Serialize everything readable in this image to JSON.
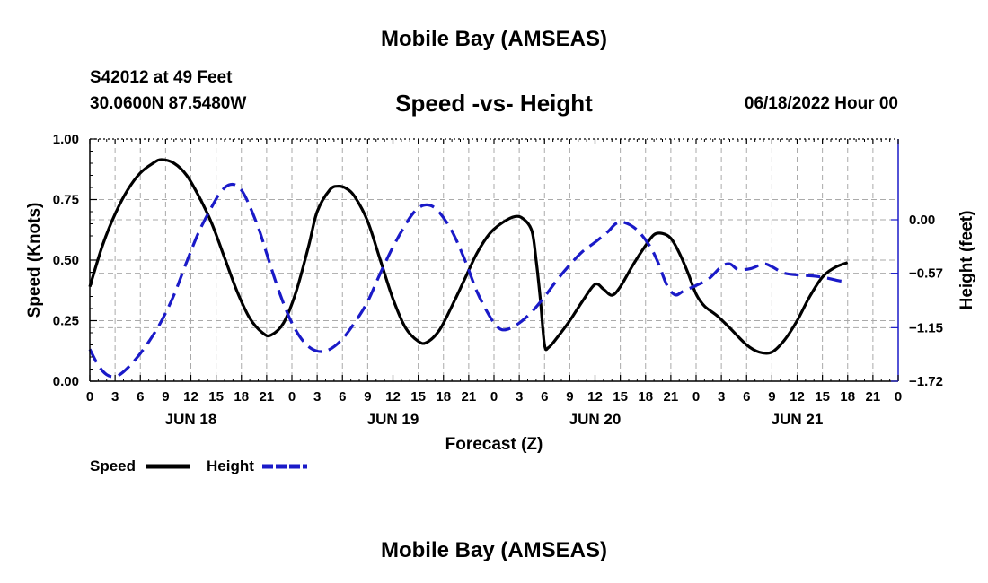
{
  "header": {
    "title": "Mobile Bay (AMSEAS)",
    "station": "S42012 at 49 Feet",
    "coords": "30.0600N  87.5480W",
    "subtitle": "Speed -vs- Height",
    "datetime": "06/18/2022 Hour 00"
  },
  "footer": {
    "title": "Mobile Bay (AMSEAS)"
  },
  "colors": {
    "speed": "#000000",
    "height": "#1a1ac8",
    "grid": "#aaaaaa"
  },
  "chart_data": {
    "type": "line",
    "title": "Speed -vs- Height",
    "xlabel": "Forecast (Z)",
    "ylabel": "Speed (Knots)",
    "ylabel_right": "Height (feet)",
    "x_unit": "hours since 06/18/2022 00Z",
    "xlim": [
      0,
      96
    ],
    "x_ticks": [
      0,
      3,
      6,
      9,
      12,
      15,
      18,
      21,
      24,
      27,
      30,
      33,
      36,
      39,
      42,
      45,
      48,
      51,
      54,
      57,
      60,
      63,
      66,
      69,
      72,
      75,
      78,
      81,
      84,
      87,
      90,
      93,
      96
    ],
    "x_tick_labels": [
      "0",
      "3",
      "6",
      "9",
      "12",
      "15",
      "18",
      "21",
      "0",
      "3",
      "6",
      "9",
      "12",
      "15",
      "18",
      "21",
      "0",
      "3",
      "6",
      "9",
      "12",
      "15",
      "18",
      "21",
      "0",
      "3",
      "6",
      "9",
      "12",
      "15",
      "18",
      "21",
      "0"
    ],
    "day_labels": [
      {
        "label": "JUN 18",
        "x": 12
      },
      {
        "label": "JUN 19",
        "x": 36
      },
      {
        "label": "JUN 20",
        "x": 60
      },
      {
        "label": "JUN 21",
        "x": 84
      }
    ],
    "ylim": [
      0,
      1
    ],
    "y_ticks": [
      0,
      0.25,
      0.5,
      0.75,
      1.0
    ],
    "y_tick_labels": [
      "0.00",
      "0.25",
      "0.50",
      "0.75",
      "1.00"
    ],
    "ylim_right": [
      -1.72,
      0.86
    ],
    "y_ticks_right": [
      0,
      -0.57,
      -1.15,
      -1.72
    ],
    "y_tick_labels_right": [
      "0.00",
      "−0.57",
      "−1.15",
      "−1.72"
    ],
    "legend": "bottom-left",
    "series": [
      {
        "name": "Speed",
        "axis": "left",
        "style": "solid",
        "points": [
          [
            0,
            0.39
          ],
          [
            1.5,
            0.56
          ],
          [
            3,
            0.69
          ],
          [
            4.5,
            0.79
          ],
          [
            6,
            0.86
          ],
          [
            7.5,
            0.9
          ],
          [
            8.5,
            0.915
          ],
          [
            10,
            0.9
          ],
          [
            11.5,
            0.85
          ],
          [
            13,
            0.76
          ],
          [
            14.5,
            0.65
          ],
          [
            16,
            0.51
          ],
          [
            17.5,
            0.37
          ],
          [
            19,
            0.26
          ],
          [
            20.5,
            0.2
          ],
          [
            21.5,
            0.19
          ],
          [
            23,
            0.24
          ],
          [
            24.5,
            0.37
          ],
          [
            26,
            0.56
          ],
          [
            27,
            0.7
          ],
          [
            28.5,
            0.79
          ],
          [
            29.5,
            0.805
          ],
          [
            30.5,
            0.795
          ],
          [
            31.5,
            0.76
          ],
          [
            33,
            0.66
          ],
          [
            34.5,
            0.5
          ],
          [
            36,
            0.34
          ],
          [
            37.5,
            0.22
          ],
          [
            39,
            0.165
          ],
          [
            40,
            0.16
          ],
          [
            41.5,
            0.21
          ],
          [
            43,
            0.31
          ],
          [
            44.5,
            0.42
          ],
          [
            46,
            0.53
          ],
          [
            47.5,
            0.61
          ],
          [
            49,
            0.655
          ],
          [
            50.5,
            0.68
          ],
          [
            51.5,
            0.67
          ],
          [
            52.5,
            0.62
          ],
          [
            53,
            0.5
          ],
          [
            53.5,
            0.34
          ],
          [
            54,
            0.15
          ],
          [
            54.5,
            0.14
          ],
          [
            55.5,
            0.18
          ],
          [
            57,
            0.25
          ],
          [
            58.5,
            0.33
          ],
          [
            60,
            0.4
          ],
          [
            61,
            0.38
          ],
          [
            62,
            0.355
          ],
          [
            63,
            0.39
          ],
          [
            64.5,
            0.48
          ],
          [
            66,
            0.56
          ],
          [
            67,
            0.605
          ],
          [
            68,
            0.61
          ],
          [
            69,
            0.59
          ],
          [
            70,
            0.53
          ],
          [
            71,
            0.45
          ],
          [
            72,
            0.36
          ],
          [
            73,
            0.31
          ],
          [
            74.5,
            0.27
          ],
          [
            76,
            0.22
          ],
          [
            78,
            0.15
          ],
          [
            79.5,
            0.12
          ],
          [
            81,
            0.12
          ],
          [
            82.5,
            0.17
          ],
          [
            84,
            0.25
          ],
          [
            85.5,
            0.35
          ],
          [
            87,
            0.43
          ],
          [
            88.5,
            0.47
          ],
          [
            90,
            0.49
          ]
        ]
      },
      {
        "name": "Height",
        "axis": "right",
        "style": "dashed",
        "points": [
          [
            0,
            -1.38
          ],
          [
            1,
            -1.55
          ],
          [
            2,
            -1.65
          ],
          [
            3,
            -1.67
          ],
          [
            4,
            -1.62
          ],
          [
            5.5,
            -1.48
          ],
          [
            7,
            -1.3
          ],
          [
            8.5,
            -1.08
          ],
          [
            10,
            -0.8
          ],
          [
            11.5,
            -0.45
          ],
          [
            13,
            -0.12
          ],
          [
            14.5,
            0.14
          ],
          [
            15.5,
            0.29
          ],
          [
            16.5,
            0.37
          ],
          [
            17.5,
            0.36
          ],
          [
            18.5,
            0.24
          ],
          [
            20,
            -0.08
          ],
          [
            21,
            -0.36
          ],
          [
            22.5,
            -0.77
          ],
          [
            24,
            -1.1
          ],
          [
            25.5,
            -1.31
          ],
          [
            27,
            -1.4
          ],
          [
            28.5,
            -1.38
          ],
          [
            30,
            -1.27
          ],
          [
            31.5,
            -1.09
          ],
          [
            33,
            -0.87
          ],
          [
            34.5,
            -0.57
          ],
          [
            36,
            -0.29
          ],
          [
            37.5,
            -0.05
          ],
          [
            38.5,
            0.08
          ],
          [
            39.5,
            0.15
          ],
          [
            40.5,
            0.15
          ],
          [
            41.5,
            0.08
          ],
          [
            43,
            -0.12
          ],
          [
            44.5,
            -0.42
          ],
          [
            46,
            -0.77
          ],
          [
            47.5,
            -1.03
          ],
          [
            48.5,
            -1.15
          ],
          [
            49.5,
            -1.17
          ],
          [
            51,
            -1.1
          ],
          [
            52.5,
            -0.98
          ],
          [
            54,
            -0.82
          ],
          [
            55.5,
            -0.64
          ],
          [
            57,
            -0.48
          ],
          [
            58.5,
            -0.34
          ],
          [
            60,
            -0.24
          ],
          [
            61.5,
            -0.13
          ],
          [
            62.5,
            -0.04
          ],
          [
            63.5,
            -0.03
          ],
          [
            65,
            -0.11
          ],
          [
            66.5,
            -0.28
          ],
          [
            67.5,
            -0.46
          ],
          [
            68.5,
            -0.69
          ],
          [
            69.5,
            -0.8
          ],
          [
            70.5,
            -0.76
          ],
          [
            72,
            -0.7
          ],
          [
            73.5,
            -0.63
          ],
          [
            75,
            -0.5
          ],
          [
            76,
            -0.47
          ],
          [
            77,
            -0.53
          ],
          [
            78.5,
            -0.52
          ],
          [
            80,
            -0.47
          ],
          [
            81,
            -0.5
          ],
          [
            82.5,
            -0.57
          ],
          [
            84.5,
            -0.59
          ],
          [
            86,
            -0.6
          ],
          [
            87.5,
            -0.62
          ],
          [
            89,
            -0.65
          ],
          [
            90,
            -0.66
          ]
        ]
      }
    ]
  }
}
